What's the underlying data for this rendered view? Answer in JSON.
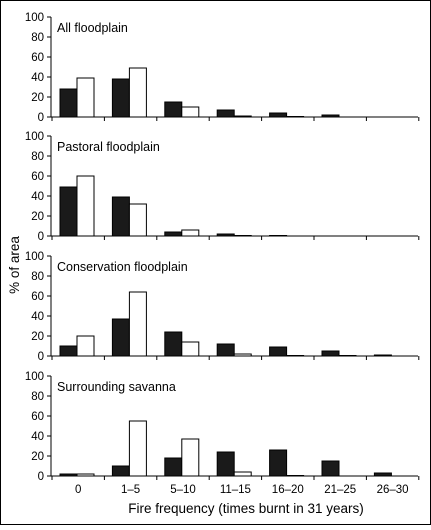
{
  "chart_data": {
    "type": "bar",
    "xlabel": "Fire frequency (times burnt in 31 years)",
    "ylabel": "% of area",
    "categories": [
      "0",
      "1–5",
      "5–10",
      "11–15",
      "16–20",
      "21–25",
      "26–30"
    ],
    "ylim": [
      0,
      100
    ],
    "yticks": [
      "0",
      "20",
      "40",
      "60",
      "80",
      "100"
    ],
    "series_colors": [
      "#1a1a1a",
      "#ffffff"
    ],
    "panels": [
      {
        "title": "All floodplain",
        "series": [
          {
            "values": [
              28,
              38,
              15,
              7,
              4,
              2,
              0
            ]
          },
          {
            "values": [
              39,
              49,
              10,
              1,
              0.5,
              0,
              0
            ]
          }
        ]
      },
      {
        "title": "Pastoral floodplain",
        "series": [
          {
            "values": [
              49,
              39,
              4,
              2,
              0.5,
              0,
              0
            ]
          },
          {
            "values": [
              60,
              32,
              6,
              0.5,
              0,
              0,
              0
            ]
          }
        ]
      },
      {
        "title": "Conservation floodplain",
        "series": [
          {
            "values": [
              10,
              37,
              24,
              12,
              9,
              5,
              1
            ]
          },
          {
            "values": [
              20,
              64,
              14,
              2,
              0.5,
              0.5,
              0
            ]
          }
        ]
      },
      {
        "title": "Surrounding savanna",
        "series": [
          {
            "values": [
              2,
              10,
              18,
              24,
              26,
              15,
              3
            ]
          },
          {
            "values": [
              2,
              55,
              37,
              4,
              0.5,
              0,
              0
            ]
          }
        ]
      }
    ]
  }
}
